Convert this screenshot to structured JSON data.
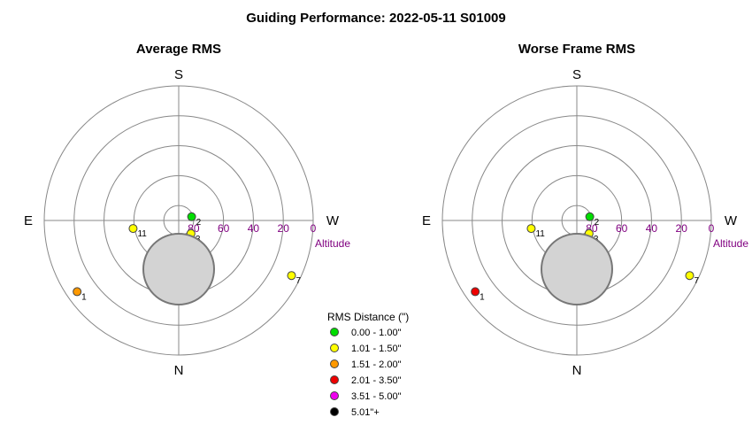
{
  "chart_data": {
    "type": "polar-scatter",
    "title": "Guiding Performance: 2022-05-11 S01009",
    "directions": {
      "top": "S",
      "bottom": "N",
      "left": "E",
      "right": "W"
    },
    "altitude_axis": {
      "ticks": [
        "80",
        "60",
        "40",
        "20",
        "0"
      ],
      "label": "Altitude"
    },
    "legend": {
      "title": "RMS Distance (\")",
      "placement": "bottom-center",
      "items": [
        {
          "label": "0.00 - 1.00\"",
          "color": "#00dd00"
        },
        {
          "label": "1.01 - 1.50\"",
          "color": "#ffff00"
        },
        {
          "label": "1.51 - 2.00\"",
          "color": "#ff9900"
        },
        {
          "label": "2.01 - 3.50\"",
          "color": "#ee0000"
        },
        {
          "label": "3.51 - 5.00\"",
          "color": "#ee00ee"
        },
        {
          "label": "5.01\"+",
          "color": "#000000"
        }
      ]
    },
    "plots": [
      {
        "title": "Average RMS",
        "points": [
          {
            "id": "1",
            "az": 125,
            "alt": 7,
            "bin": 2
          },
          {
            "id": "2",
            "az": 286,
            "alt": 81,
            "bin": 0
          },
          {
            "id": "3",
            "az": 223,
            "alt": 78,
            "bin": 1
          },
          {
            "id": "4",
            "az": 190,
            "alt": 75,
            "bin": 0
          },
          {
            "id": "5",
            "az": 163,
            "alt": 54,
            "bin": 2
          },
          {
            "id": "6",
            "az": 167,
            "alt": 60,
            "bin": 1
          },
          {
            "id": "7",
            "az": 244,
            "alt": 6,
            "bin": 1
          },
          {
            "id": "8",
            "az": 181,
            "alt": 70,
            "bin": 1
          },
          {
            "id": "9",
            "az": 174,
            "alt": 52,
            "bin": 1
          },
          {
            "id": "10",
            "az": 146,
            "alt": 67,
            "bin": 1
          },
          {
            "id": "11",
            "az": 100,
            "alt": 59,
            "bin": 1
          }
        ]
      },
      {
        "title": "Worse Frame RMS",
        "points": [
          {
            "id": "1",
            "az": 125,
            "alt": 7,
            "bin": 3
          },
          {
            "id": "2",
            "az": 286,
            "alt": 81,
            "bin": 0
          },
          {
            "id": "3",
            "az": 223,
            "alt": 78,
            "bin": 1
          },
          {
            "id": "4",
            "az": 190,
            "alt": 75,
            "bin": 1
          },
          {
            "id": "5",
            "az": 163,
            "alt": 54,
            "bin": 2
          },
          {
            "id": "6",
            "az": 167,
            "alt": 60,
            "bin": 1
          },
          {
            "id": "7",
            "az": 244,
            "alt": 6,
            "bin": 1
          },
          {
            "id": "8",
            "az": 181,
            "alt": 70,
            "bin": 1
          },
          {
            "id": "9",
            "az": 174,
            "alt": 52,
            "bin": 2
          },
          {
            "id": "10",
            "az": 146,
            "alt": 67,
            "bin": 1
          },
          {
            "id": "11",
            "az": 100,
            "alt": 59,
            "bin": 1
          }
        ]
      }
    ]
  }
}
